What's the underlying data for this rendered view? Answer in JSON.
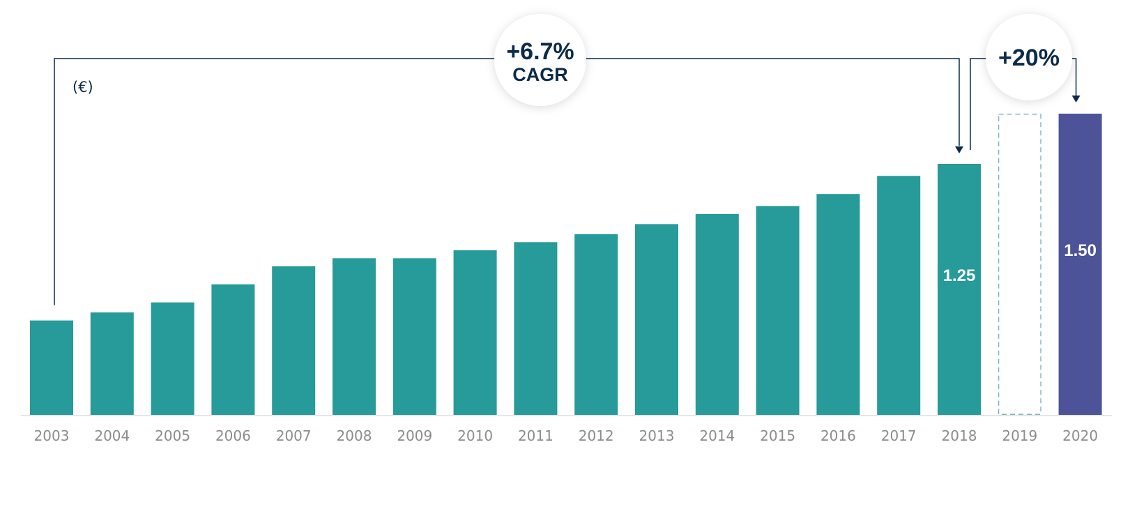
{
  "chart_data": {
    "type": "bar",
    "unit_label": "(€)",
    "categories": [
      "2003",
      "2004",
      "2005",
      "2006",
      "2007",
      "2008",
      "2009",
      "2010",
      "2011",
      "2012",
      "2013",
      "2014",
      "2015",
      "2016",
      "2017",
      "2018",
      "2019",
      "2020"
    ],
    "values": [
      0.47,
      0.51,
      0.56,
      0.65,
      0.74,
      0.78,
      0.78,
      0.82,
      0.86,
      0.9,
      0.95,
      1.0,
      1.04,
      1.1,
      1.19,
      1.25,
      1.5,
      1.5
    ],
    "bar_styles": [
      "solid",
      "solid",
      "solid",
      "solid",
      "solid",
      "solid",
      "solid",
      "solid",
      "solid",
      "solid",
      "solid",
      "solid",
      "solid",
      "solid",
      "solid",
      "solid",
      "dashed-outline",
      "solid-highlight"
    ],
    "data_labels": [
      {
        "category": "2018",
        "text": "1.25"
      },
      {
        "category": "2020",
        "text": "1.50"
      }
    ],
    "ylim": [
      0,
      1.5
    ],
    "grid": false,
    "annotations": [
      {
        "from": "2003",
        "to": "2018",
        "line1": "+6.7%",
        "line2": "CAGR"
      },
      {
        "from": "2018",
        "to": "2020",
        "line1": "+20%",
        "line2": ""
      }
    ],
    "colors": {
      "bar": "#279a9a",
      "highlight": "#4c5399",
      "dashed_outline": "#7fb6bd",
      "annotation": "#0b2b4a",
      "axis": "#dddddd",
      "tick": "#8c8c8c"
    }
  }
}
